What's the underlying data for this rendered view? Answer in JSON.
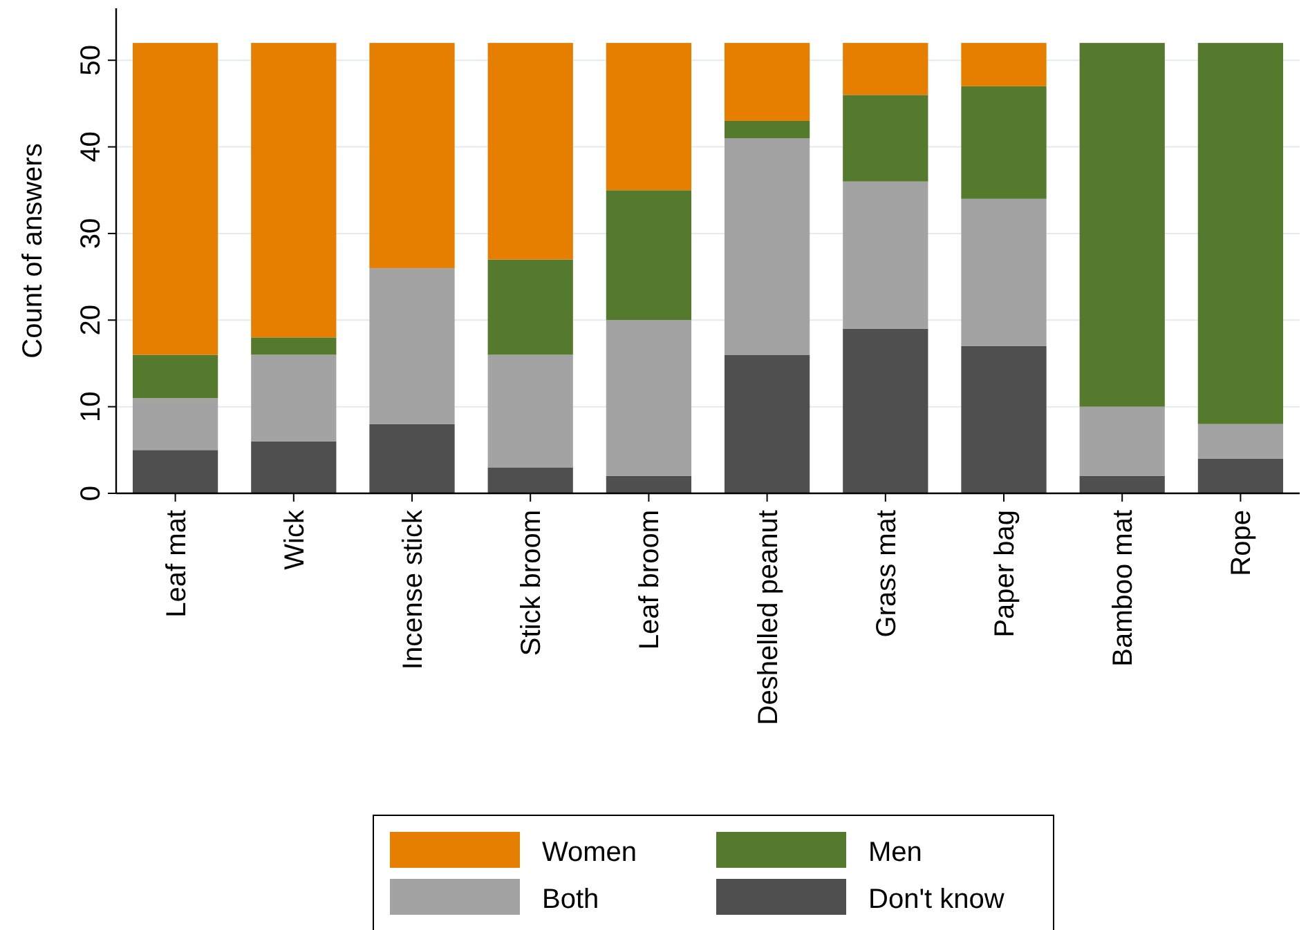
{
  "chart_data": {
    "type": "bar",
    "stacked": true,
    "ylabel": "Count of answers",
    "categories": [
      "Leaf mat",
      "Wick",
      "Incense stick",
      "Stick broom",
      "Leaf broom",
      "Deshelled peanut",
      "Grass mat",
      "Paper bag",
      "Bamboo mat",
      "Rope"
    ],
    "series": [
      {
        "name": "Don't know",
        "color": "#4f4f4f",
        "values": [
          5,
          6,
          8,
          3,
          2,
          16,
          19,
          17,
          2,
          4
        ]
      },
      {
        "name": "Both",
        "color": "#a3a3a3",
        "values": [
          6,
          10,
          18,
          13,
          18,
          25,
          17,
          17,
          8,
          4
        ]
      },
      {
        "name": "Men",
        "color": "#557a2e",
        "values": [
          5,
          2,
          0,
          11,
          15,
          2,
          10,
          13,
          42,
          44
        ]
      },
      {
        "name": "Women",
        "color": "#e67e00",
        "values": [
          36,
          34,
          26,
          25,
          17,
          9,
          6,
          5,
          0,
          0
        ]
      }
    ],
    "ylim": [
      0,
      56
    ],
    "yticks": [
      0,
      10,
      20,
      30,
      40,
      50
    ],
    "grid": "y",
    "legend": "bottom"
  }
}
